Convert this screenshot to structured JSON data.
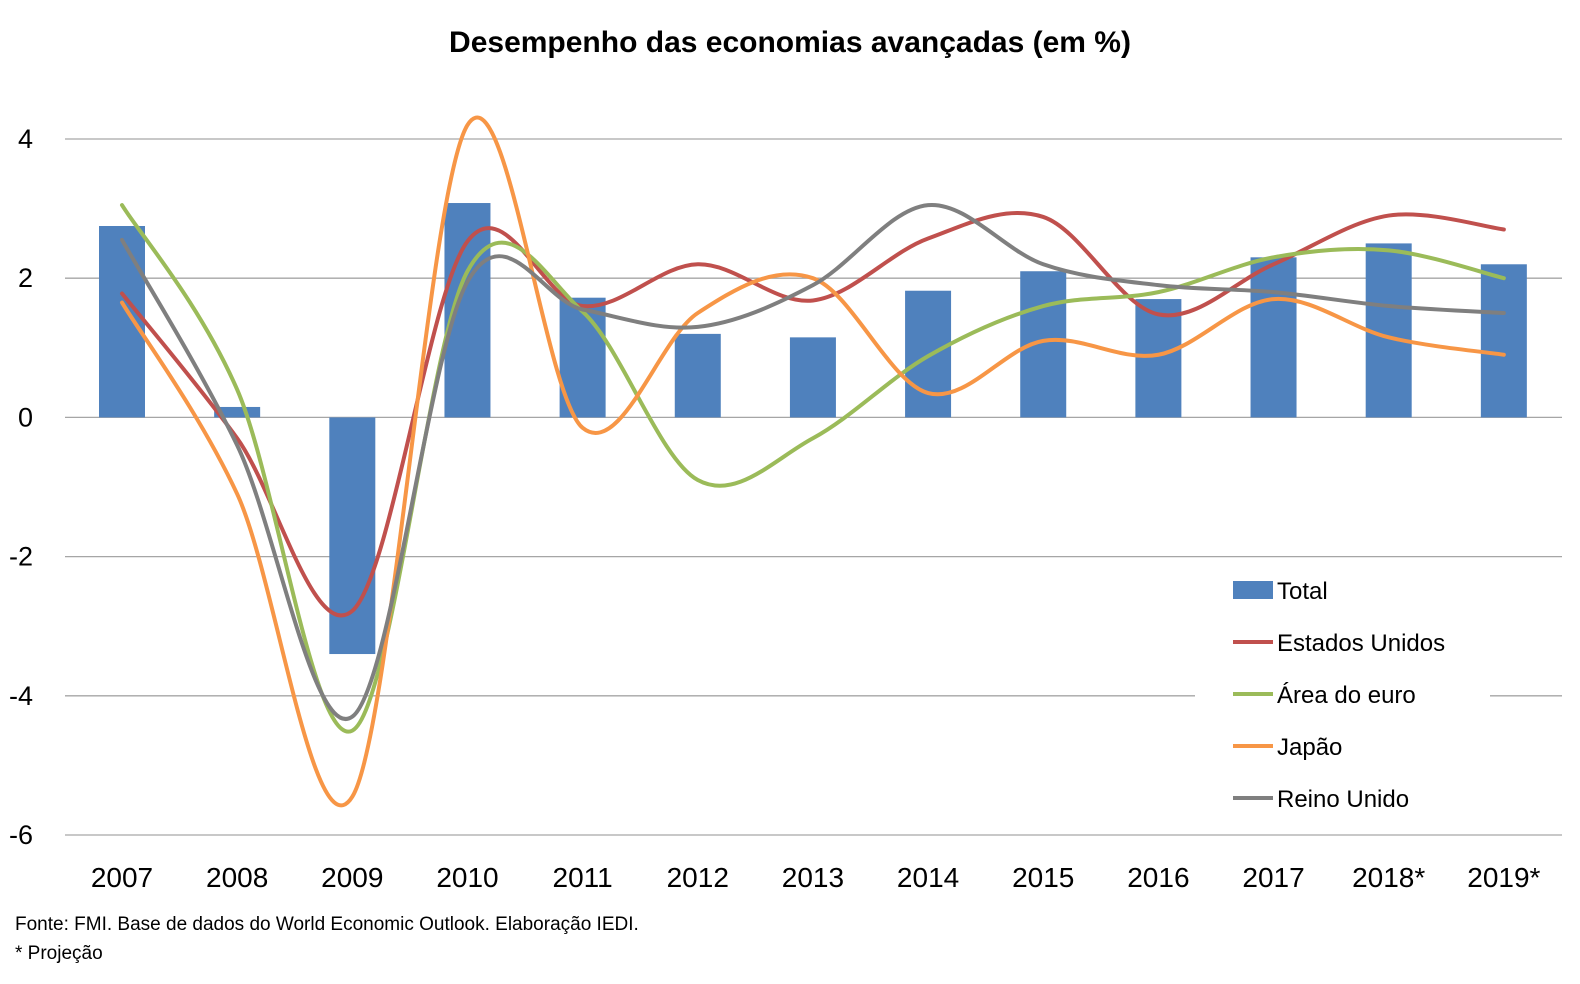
{
  "chart_data": {
    "type": "bar+line",
    "title": "Desempenho das economias avançadas (em %)",
    "categories": [
      "2007",
      "2008",
      "2009",
      "2010",
      "2011",
      "2012",
      "2013",
      "2014",
      "2015",
      "2016",
      "2017",
      "2018*",
      "2019*"
    ],
    "ylim": [
      -6,
      4
    ],
    "yticks": [
      4,
      2,
      0,
      -2,
      -4,
      -6
    ],
    "grid": true,
    "legend_position": "bottom-right",
    "bar_series": {
      "name": "Total",
      "color": "#4f81bd",
      "values": [
        2.75,
        0.15,
        -3.4,
        3.08,
        1.72,
        1.2,
        1.15,
        1.82,
        2.1,
        1.7,
        2.3,
        2.5,
        2.2
      ]
    },
    "series": [
      {
        "name": "Estados Unidos",
        "color": "#c0504d",
        "values": [
          1.78,
          -0.3,
          -2.78,
          2.53,
          1.6,
          2.2,
          1.68,
          2.57,
          2.88,
          1.48,
          2.2,
          2.9,
          2.7
        ]
      },
      {
        "name": "Área do euro",
        "color": "#9bbb59",
        "values": [
          3.05,
          0.4,
          -4.5,
          2.1,
          1.52,
          -0.9,
          -0.3,
          0.88,
          1.6,
          1.8,
          2.3,
          2.4,
          2.0
        ]
      },
      {
        "name": "Japão",
        "color": "#f79646",
        "values": [
          1.65,
          -1.1,
          -5.45,
          4.2,
          -0.15,
          1.5,
          2.0,
          0.35,
          1.1,
          0.9,
          1.7,
          1.15,
          0.9
        ]
      },
      {
        "name": "Reino Unido",
        "color": "#7f7f7f",
        "values": [
          2.55,
          -0.4,
          -4.3,
          1.95,
          1.55,
          1.3,
          1.9,
          3.05,
          2.2,
          1.9,
          1.8,
          1.6,
          1.5
        ]
      }
    ],
    "footnotes": [
      "Fonte: FMI. Base de dados do World Economic Outlook. Elaboração IEDI.",
      "* Projeção"
    ]
  }
}
